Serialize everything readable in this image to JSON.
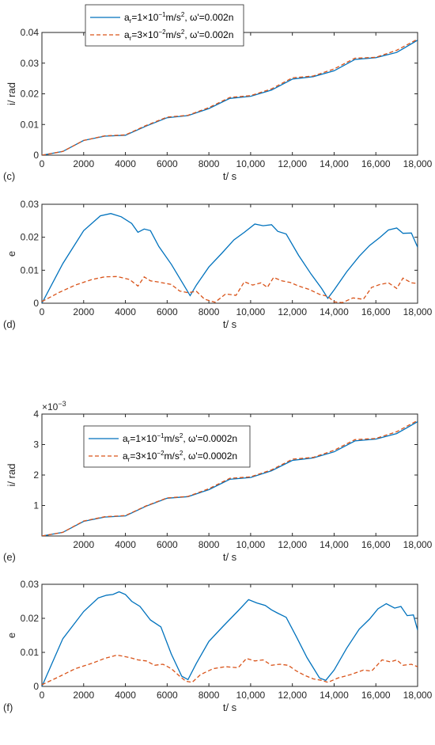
{
  "chart_data": [
    {
      "panel": "(c)",
      "type": "line",
      "xlabel": "t/ s",
      "ylabel": "i/ rad",
      "xlim": [
        0,
        18000
      ],
      "ylim": [
        0,
        0.04
      ],
      "xticks": [
        0,
        2000,
        4000,
        6000,
        8000,
        10000,
        12000,
        14000,
        16000,
        18000
      ],
      "xtick_labels": [
        "0",
        "2000",
        "4000",
        "6000",
        "8000",
        "10,000",
        "12,000",
        "14,000",
        "16,000",
        "18,000"
      ],
      "yticks": [
        0,
        0.01,
        0.02,
        0.03,
        0.04
      ],
      "ytick_labels": [
        "0",
        "0.01",
        "0.02",
        "0.03",
        "0.04"
      ],
      "legend": "top-left",
      "series": [
        {
          "name": "a_r=1×10^-1 m/s^2, ω'=0.002n",
          "legend_parts": [
            "a",
            "r",
            "=1×10",
            "−1",
            "m/s",
            "2",
            ", ω'=0.002n"
          ],
          "color": "#0072bd",
          "style": "solid",
          "x": [
            0,
            1000,
            2000,
            3000,
            4000,
            5000,
            6000,
            7000,
            8000,
            9000,
            10000,
            11000,
            12000,
            13000,
            14000,
            15000,
            16000,
            17000,
            18000
          ],
          "y": [
            0,
            0.0012,
            0.0048,
            0.0062,
            0.0065,
            0.0095,
            0.0122,
            0.0129,
            0.0152,
            0.0185,
            0.0192,
            0.0212,
            0.0248,
            0.0256,
            0.0275,
            0.0312,
            0.0318,
            0.0335,
            0.0375
          ]
        },
        {
          "name": "a_r=3×10^-2 m/s^2, ω'=0.002n",
          "legend_parts": [
            "a",
            "r",
            "=3×10",
            "−2",
            "m/s",
            "2",
            ", ω'=0.002n"
          ],
          "color": "#d95319",
          "style": "dashed",
          "x": [
            0,
            1000,
            2000,
            3000,
            4000,
            5000,
            6000,
            7000,
            8000,
            9000,
            10000,
            11000,
            12000,
            13000,
            14000,
            15000,
            16000,
            17000,
            18000
          ],
          "y": [
            0,
            0.0012,
            0.0048,
            0.0063,
            0.0066,
            0.0097,
            0.0124,
            0.013,
            0.0155,
            0.0188,
            0.0194,
            0.0216,
            0.0252,
            0.0258,
            0.0281,
            0.0316,
            0.0319,
            0.0342,
            0.0378
          ]
        }
      ]
    },
    {
      "panel": "(d)",
      "type": "line",
      "xlabel": "t/ s",
      "ylabel": "e",
      "xlim": [
        0,
        18000
      ],
      "ylim": [
        0,
        0.03
      ],
      "xticks": [
        0,
        2000,
        4000,
        6000,
        8000,
        10000,
        12000,
        14000,
        16000,
        18000
      ],
      "xtick_labels": [
        "0",
        "2000",
        "4000",
        "6000",
        "8000",
        "10,000",
        "12,000",
        "14,000",
        "16,000",
        "18,000"
      ],
      "yticks": [
        0,
        0.01,
        0.02,
        0.03
      ],
      "ytick_labels": [
        "0",
        "0.01",
        "0.02",
        "0.03"
      ],
      "series": [
        {
          "color": "#0072bd",
          "style": "solid",
          "x": [
            0,
            1000,
            2000,
            2800,
            3300,
            3800,
            4300,
            4600,
            4900,
            5200,
            5600,
            6200,
            6800,
            7100,
            7400,
            8000,
            8600,
            9200,
            9700,
            10200,
            10600,
            11000,
            11300,
            11700,
            12300,
            12900,
            13400,
            13700,
            14000,
            14600,
            15200,
            15700,
            16200,
            16600,
            17000,
            17300,
            17700,
            18000
          ],
          "y": [
            0,
            0.012,
            0.022,
            0.0265,
            0.0272,
            0.0262,
            0.0242,
            0.0215,
            0.0225,
            0.022,
            0.0172,
            0.0118,
            0.0055,
            0.0023,
            0.0055,
            0.011,
            0.015,
            0.0192,
            0.0215,
            0.024,
            0.0235,
            0.0238,
            0.0218,
            0.021,
            0.0145,
            0.0088,
            0.0045,
            0.0015,
            0.004,
            0.0095,
            0.0142,
            0.0175,
            0.02,
            0.0222,
            0.0228,
            0.0212,
            0.0213,
            0.017
          ]
        },
        {
          "color": "#d95319",
          "style": "dashed",
          "x": [
            0,
            800,
            1600,
            2400,
            3000,
            3600,
            4200,
            4600,
            4900,
            5200,
            5600,
            6200,
            6600,
            7000,
            7400,
            7800,
            8300,
            8800,
            9300,
            9700,
            10100,
            10500,
            10800,
            11100,
            11500,
            11900,
            12300,
            12800,
            13300,
            13700,
            14000,
            14400,
            14900,
            15400,
            15800,
            16200,
            16600,
            17000,
            17300,
            17700,
            18000
          ],
          "y": [
            0.0005,
            0.0032,
            0.0055,
            0.0072,
            0.008,
            0.0081,
            0.0072,
            0.0052,
            0.008,
            0.0068,
            0.0064,
            0.0057,
            0.0037,
            0.0032,
            0.0036,
            0.0012,
            0.0003,
            0.0028,
            0.0024,
            0.0065,
            0.0055,
            0.0062,
            0.0048,
            0.0078,
            0.0068,
            0.0063,
            0.0052,
            0.0042,
            0.0027,
            0.0021,
            0.0004,
            0.0002,
            0.0016,
            0.0012,
            0.0048,
            0.0057,
            0.0062,
            0.0045,
            0.0076,
            0.0062,
            0.006
          ]
        }
      ]
    },
    {
      "panel": "(e)",
      "type": "line",
      "xlabel": "t/ s",
      "ylabel": "i/ rad",
      "y_multiplier": "×10",
      "y_multiplier_exp": "−3",
      "xlim": [
        0,
        18000
      ],
      "ylim": [
        0,
        4
      ],
      "xticks": [
        2000,
        4000,
        6000,
        8000,
        10000,
        12000,
        14000,
        16000,
        18000
      ],
      "xtick_labels": [
        "2000",
        "4000",
        "6000",
        "8000",
        "10,000",
        "12,000",
        "14,000",
        "16,000",
        "18,000"
      ],
      "yticks": [
        1,
        2,
        3,
        4
      ],
      "ytick_labels": [
        "1",
        "2",
        "3",
        "4"
      ],
      "legend": "top-left",
      "series": [
        {
          "name": "a_r=1×10^-1 m/s^2, ω'=0.0002n",
          "legend_parts": [
            "a",
            "r",
            "=1×10",
            "−1",
            "m/s",
            "2",
            ", ω'=0.0002n"
          ],
          "color": "#0072bd",
          "style": "solid",
          "x": [
            0,
            1000,
            2000,
            3000,
            4000,
            5000,
            6000,
            7000,
            8000,
            9000,
            10000,
            11000,
            12000,
            13000,
            14000,
            15000,
            16000,
            17000,
            18000
          ],
          "y": [
            0,
            0.12,
            0.48,
            0.62,
            0.66,
            0.98,
            1.24,
            1.29,
            1.52,
            1.86,
            1.92,
            2.14,
            2.48,
            2.56,
            2.76,
            3.12,
            3.18,
            3.36,
            3.75
          ]
        },
        {
          "name": "a_r=3×10^-2 m/s^2, ω'=0.0002n",
          "legend_parts": [
            "a",
            "r",
            "=3×10",
            "−2",
            "m/s",
            "2",
            ", ω'=0.0002n"
          ],
          "color": "#d95319",
          "style": "dashed",
          "x": [
            0,
            1000,
            2000,
            3000,
            4000,
            5000,
            6000,
            7000,
            8000,
            9000,
            10000,
            11000,
            12000,
            13000,
            14000,
            15000,
            16000,
            17000,
            18000
          ],
          "y": [
            0,
            0.12,
            0.49,
            0.63,
            0.67,
            0.99,
            1.25,
            1.3,
            1.55,
            1.89,
            1.94,
            2.17,
            2.52,
            2.58,
            2.81,
            3.16,
            3.2,
            3.42,
            3.79
          ]
        }
      ]
    },
    {
      "panel": "(f)",
      "type": "line",
      "xlabel": "t/ s",
      "ylabel": "e",
      "xlim": [
        0,
        18000
      ],
      "ylim": [
        0,
        0.03
      ],
      "xticks": [
        0,
        2000,
        4000,
        6000,
        8000,
        10000,
        12000,
        14000,
        16000,
        18000
      ],
      "xtick_labels": [
        "0",
        "2000",
        "4000",
        "6000",
        "8000",
        "10,000",
        "12,000",
        "14,000",
        "16,000",
        "18,000"
      ],
      "yticks": [
        0,
        0.01,
        0.02,
        0.03
      ],
      "ytick_labels": [
        "0",
        "0.01",
        "0.02",
        "0.03"
      ],
      "series": [
        {
          "color": "#0072bd",
          "style": "solid",
          "x": [
            0,
            1000,
            2000,
            2700,
            3100,
            3400,
            3700,
            4000,
            4300,
            4700,
            5200,
            5700,
            6200,
            6700,
            7000,
            7400,
            8000,
            8700,
            9400,
            9900,
            10300,
            10700,
            11000,
            11300,
            11700,
            12200,
            12700,
            13300,
            13600,
            14000,
            14600,
            15200,
            15700,
            16100,
            16500,
            16900,
            17200,
            17500,
            17800,
            18000
          ],
          "y": [
            0,
            0.014,
            0.022,
            0.026,
            0.0268,
            0.027,
            0.0278,
            0.027,
            0.025,
            0.0235,
            0.0195,
            0.0175,
            0.0095,
            0.003,
            0.002,
            0.0068,
            0.0132,
            0.0178,
            0.0222,
            0.0255,
            0.0245,
            0.0238,
            0.0225,
            0.0215,
            0.0203,
            0.0145,
            0.0085,
            0.0025,
            0.0018,
            0.0048,
            0.0112,
            0.0168,
            0.0198,
            0.0228,
            0.0243,
            0.023,
            0.0235,
            0.0208,
            0.021,
            0.0165
          ]
        },
        {
          "color": "#d95319",
          "style": "dashed",
          "x": [
            0,
            800,
            1600,
            2400,
            3000,
            3600,
            4200,
            4600,
            5000,
            5400,
            5800,
            6200,
            6600,
            6900,
            7200,
            7600,
            8200,
            8800,
            9400,
            9800,
            10200,
            10600,
            11000,
            11400,
            11800,
            12200,
            12600,
            13000,
            13400,
            13700,
            14200,
            14800,
            15400,
            15800,
            16300,
            16700,
            17000,
            17300,
            17700,
            18000
          ],
          "y": [
            0.0005,
            0.0028,
            0.0052,
            0.0068,
            0.0082,
            0.0092,
            0.0085,
            0.0078,
            0.0075,
            0.0062,
            0.0065,
            0.0052,
            0.003,
            0.0015,
            0.0012,
            0.0035,
            0.0052,
            0.0058,
            0.0055,
            0.0082,
            0.0075,
            0.0078,
            0.0062,
            0.0065,
            0.0062,
            0.0045,
            0.0032,
            0.0022,
            0.0018,
            0.0012,
            0.0025,
            0.0035,
            0.0048,
            0.0045,
            0.0078,
            0.0072,
            0.0078,
            0.0062,
            0.0065,
            0.0058
          ]
        }
      ]
    }
  ]
}
